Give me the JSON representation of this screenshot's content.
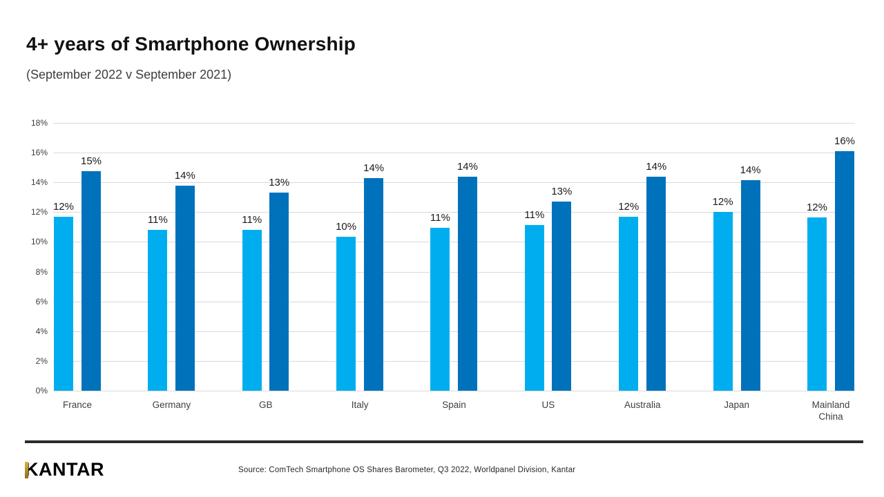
{
  "header": {
    "title": "4+ years of Smartphone Ownership",
    "subtitle": "(September 2022 v September 2021)"
  },
  "footer": {
    "brand": "KANTAR",
    "source": "Source: ComTech Smartphone OS Shares Barometer, Q3 2022, Worldpanel Division, Kantar"
  },
  "chart_data": {
    "type": "bar",
    "title": "4+ years of Smartphone Ownership",
    "subtitle": "(September 2022 v September 2021)",
    "categories": [
      "France",
      "Germany",
      "GB",
      "Italy",
      "Spain",
      "US",
      "Australia",
      "Japan",
      "Mainland China"
    ],
    "series": [
      {
        "name": "left-bar-light-blue",
        "color": "#00AEEF",
        "labels": [
          "12%",
          "11%",
          "11%",
          "10%",
          "11%",
          "11%",
          "12%",
          "12%",
          "12%"
        ],
        "values": [
          11.7,
          10.8,
          10.8,
          10.35,
          10.95,
          11.15,
          11.7,
          12.0,
          11.65
        ]
      },
      {
        "name": "right-bar-dark-blue",
        "color": "#0072BC",
        "labels": [
          "15%",
          "14%",
          "13%",
          "14%",
          "14%",
          "13%",
          "14%",
          "14%",
          "16%"
        ],
        "values": [
          14.75,
          13.8,
          13.3,
          14.3,
          14.4,
          12.7,
          14.4,
          14.15,
          16.1
        ]
      }
    ],
    "ylim": [
      0,
      18
    ],
    "yticks": [
      "18%",
      "16%",
      "14%",
      "12%",
      "10%",
      "8%",
      "6%",
      "4%",
      "2%",
      "0%"
    ],
    "grid": "horizontal",
    "legend": "none",
    "gridline_color": "#D9D9D9"
  }
}
